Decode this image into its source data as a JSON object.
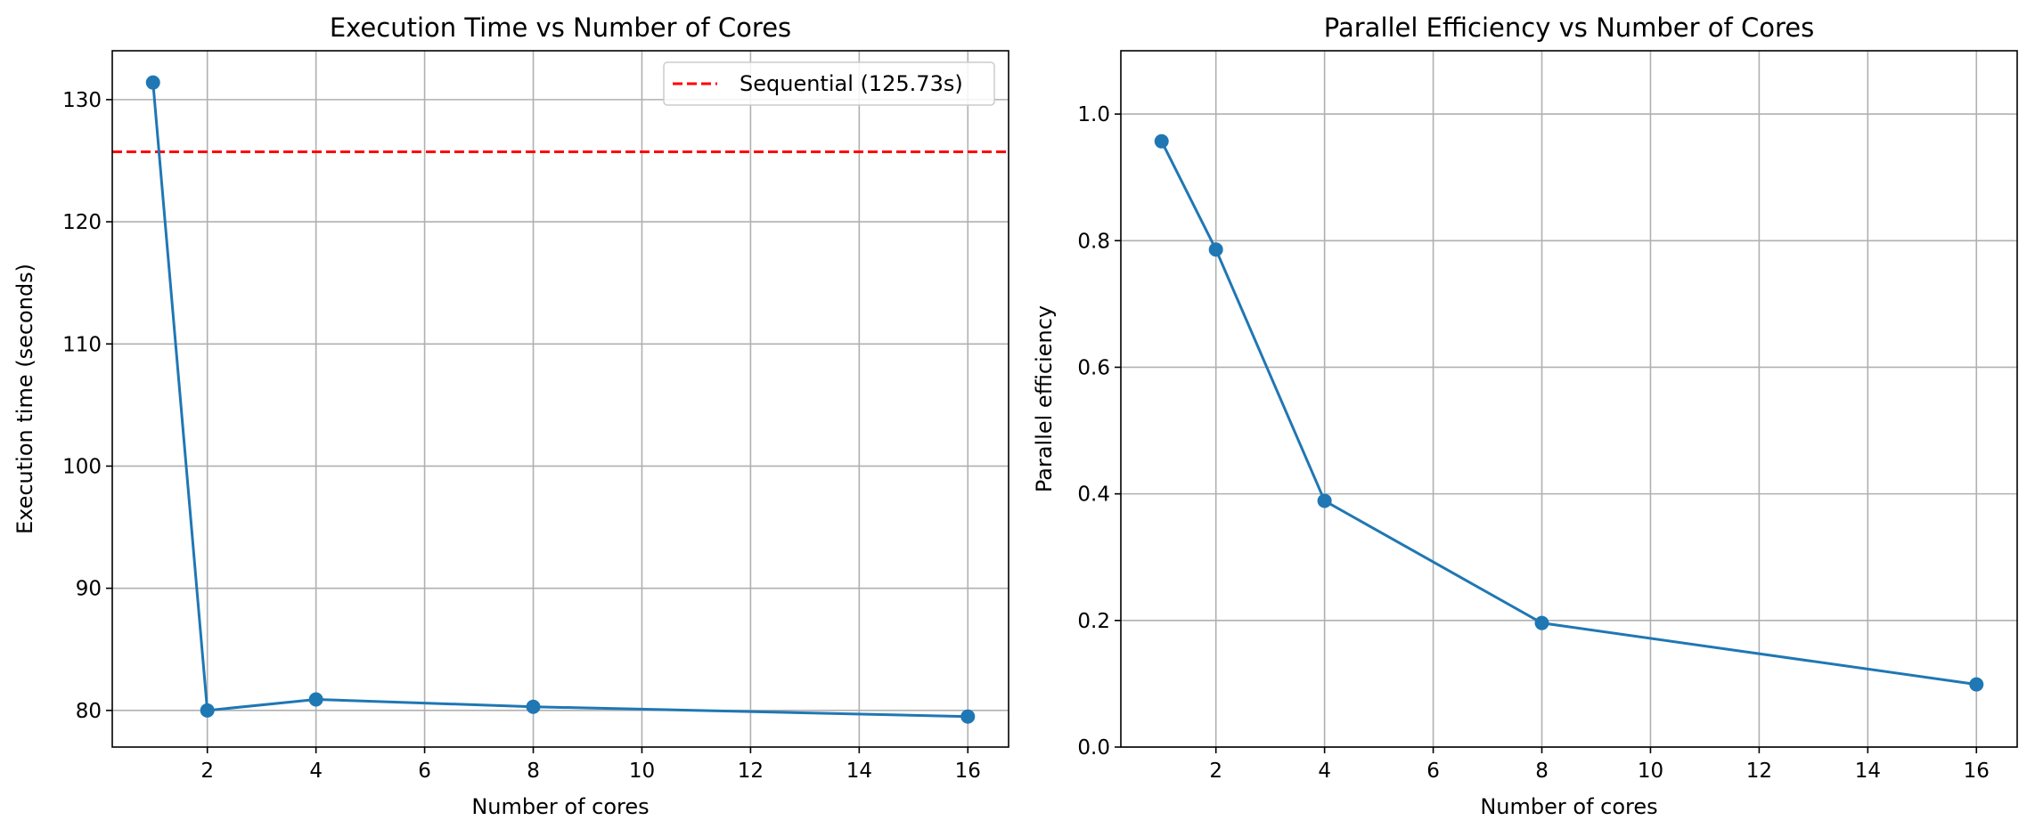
{
  "chart_data": [
    {
      "type": "line",
      "title": "Execution Time vs Number of Cores",
      "xlabel": "Number of cores",
      "ylabel": "Execution time (seconds)",
      "xlim": [
        0.25,
        16.75
      ],
      "ylim": [
        77,
        134
      ],
      "xticks": [
        2,
        4,
        6,
        8,
        10,
        12,
        14,
        16
      ],
      "yticks": [
        80,
        90,
        100,
        110,
        120,
        130
      ],
      "grid": true,
      "legend_position": "top-right",
      "series": [
        {
          "x": [
            1,
            2,
            4,
            8,
            16
          ],
          "y": [
            131.4,
            80.0,
            80.9,
            80.3,
            79.5
          ],
          "color": "#1f77b4"
        }
      ],
      "reference_lines": [
        {
          "name": "Sequential (125.73s)",
          "y": 125.73,
          "color": "#ff0000",
          "style": "dashed"
        }
      ]
    },
    {
      "type": "line",
      "title": "Parallel Efficiency vs Number of Cores",
      "xlabel": "Number of cores",
      "ylabel": "Parallel efficiency",
      "xlim": [
        0.25,
        16.75
      ],
      "ylim": [
        0,
        1.1
      ],
      "xticks": [
        2,
        4,
        6,
        8,
        10,
        12,
        14,
        16
      ],
      "yticks": [
        0.0,
        0.2,
        0.4,
        0.6,
        0.8,
        1.0
      ],
      "grid": true,
      "series": [
        {
          "x": [
            1,
            2,
            4,
            8,
            16
          ],
          "y": [
            0.957,
            0.786,
            0.389,
            0.196,
            0.099
          ],
          "color": "#1f77b4"
        }
      ]
    }
  ]
}
